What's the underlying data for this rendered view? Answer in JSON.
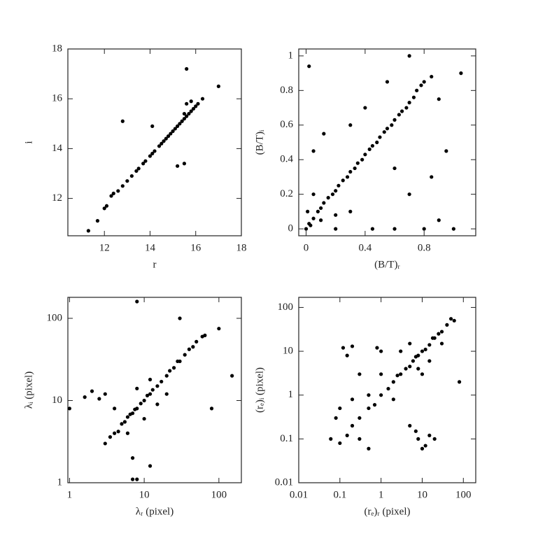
{
  "chart_data": [
    {
      "type": "scatter",
      "xlabel": "r",
      "ylabel": "i",
      "color": "#000000",
      "xlim": [
        10.4,
        18
      ],
      "ylim": [
        10.5,
        18
      ],
      "xticks": [
        12,
        14,
        16,
        18
      ],
      "yticks": [
        12,
        14,
        16,
        18
      ],
      "xlog": false,
      "ylog": false,
      "x": [
        11.3,
        11.7,
        12.1,
        12.4,
        12.6,
        12.8,
        13.0,
        13.2,
        13.4,
        13.5,
        13.7,
        13.8,
        14.0,
        14.1,
        14.2,
        14.4,
        14.5,
        14.6,
        14.7,
        14.8,
        14.9,
        15.0,
        15.1,
        15.2,
        15.3,
        15.4,
        15.5,
        15.5,
        15.6,
        15.7,
        15.8,
        15.9,
        16.0,
        16.1,
        15.6,
        15.8,
        12.8,
        14.1,
        15.2,
        15.5,
        16.3,
        17.0,
        15.6,
        12.0,
        12.3
      ],
      "y": [
        10.7,
        11.1,
        11.7,
        12.2,
        12.3,
        12.5,
        12.7,
        12.9,
        13.1,
        13.2,
        13.4,
        13.5,
        13.7,
        13.8,
        13.9,
        14.1,
        14.2,
        14.3,
        14.4,
        14.5,
        14.6,
        14.7,
        14.8,
        14.9,
        15.0,
        15.1,
        15.2,
        15.4,
        15.3,
        15.4,
        15.5,
        15.6,
        15.7,
        15.8,
        15.8,
        15.9,
        15.1,
        14.9,
        13.3,
        13.4,
        16.0,
        16.5,
        17.2,
        11.6,
        12.1
      ]
    },
    {
      "type": "scatter",
      "xlabel": "(B/T)ᵣ",
      "ylabel": "(B/T)ᵢ",
      "color": "#000000",
      "xlim": [
        -0.05,
        1.15
      ],
      "ylim": [
        -0.04,
        1.04
      ],
      "xticks": [
        0,
        0.4,
        0.8
      ],
      "yticks": [
        0,
        0.2,
        0.4,
        0.6,
        0.8,
        1
      ],
      "xlog": false,
      "ylog": false,
      "x": [
        0,
        0.02,
        0.05,
        0.08,
        0.1,
        0.12,
        0.15,
        0.18,
        0.2,
        0.22,
        0.25,
        0.28,
        0.3,
        0.33,
        0.35,
        0.38,
        0.4,
        0.43,
        0.45,
        0.48,
        0.5,
        0.53,
        0.55,
        0.58,
        0.6,
        0.63,
        0.65,
        0.68,
        0.7,
        0.73,
        0.75,
        0.78,
        0.8,
        0.85,
        0.02,
        0.05,
        0.1,
        0.2,
        0.05,
        0.12,
        0.3,
        0.45,
        0.6,
        0.8,
        0.9,
        1.0,
        0.85,
        0.95,
        0.9,
        1.05,
        0.7,
        0.55,
        0.3,
        0.4,
        0.6,
        0.7,
        0.2,
        0.01,
        0.03
      ],
      "y": [
        0,
        0.03,
        0.06,
        0.1,
        0.12,
        0.15,
        0.18,
        0.2,
        0.22,
        0.25,
        0.28,
        0.3,
        0.33,
        0.35,
        0.38,
        0.4,
        0.43,
        0.46,
        0.48,
        0.5,
        0.53,
        0.56,
        0.58,
        0.6,
        0.63,
        0.66,
        0.68,
        0.7,
        0.73,
        0.76,
        0.8,
        0.83,
        0.85,
        0.88,
        0.94,
        0.2,
        0.05,
        0.08,
        0.45,
        0.55,
        0.1,
        0,
        0,
        0,
        0.05,
        0,
        0.3,
        0.45,
        0.75,
        0.9,
        1.0,
        0.85,
        0.6,
        0.7,
        0.35,
        0.2,
        0,
        0.1,
        0.02
      ]
    },
    {
      "type": "scatter",
      "xlabel": "λᵣ (pixel)",
      "ylabel": "λᵢ (pixel)",
      "color": "#000000",
      "xlim": [
        0.95,
        200
      ],
      "ylim": [
        1,
        180
      ],
      "xticks": [
        1,
        10,
        100
      ],
      "yticks": [
        1,
        10,
        100
      ],
      "xlog": true,
      "ylog": true,
      "x": [
        3,
        3.5,
        4,
        4.5,
        5,
        5.5,
        6,
        6.5,
        7,
        7.5,
        8,
        9,
        10,
        11,
        12,
        13,
        15,
        17,
        20,
        22,
        25,
        28,
        30,
        35,
        40,
        45,
        50,
        60,
        65,
        4,
        6,
        10,
        15,
        8,
        12,
        20,
        1,
        1.6,
        2,
        3,
        2.5,
        80,
        100,
        150,
        30,
        8,
        7,
        12,
        7,
        8
      ],
      "y": [
        3,
        3.6,
        4,
        4.2,
        5.2,
        5.5,
        6.3,
        6.8,
        7,
        7.8,
        8,
        9.2,
        10,
        11.5,
        12,
        13.5,
        15,
        17,
        20,
        23,
        25,
        30,
        30,
        36,
        42,
        45,
        52,
        60,
        62,
        8,
        4,
        6,
        9,
        14,
        18,
        12,
        8,
        11,
        13,
        12,
        10.5,
        8,
        75,
        20,
        100,
        160,
        2,
        1.6,
        1.1,
        1.1
      ]
    },
    {
      "type": "scatter",
      "xlabel": "(rₑ)ᵣ (pixel)",
      "ylabel": "(rₑ)ᵢ (pixel)",
      "color": "#000000",
      "xlim": [
        0.01,
        200
      ],
      "ylim": [
        0.01,
        170
      ],
      "xticks": [
        0.01,
        0.1,
        1,
        10,
        100
      ],
      "yticks": [
        0.01,
        0.1,
        1,
        10,
        100
      ],
      "xlog": true,
      "ylog": true,
      "x": [
        0.3,
        0.5,
        0.7,
        1,
        1.5,
        2,
        2.5,
        3,
        4,
        5,
        6,
        7,
        8,
        10,
        12,
        15,
        18,
        20,
        25,
        30,
        40,
        50,
        3,
        5,
        8,
        10,
        15,
        2,
        1,
        0.2,
        0.1,
        0.08,
        0.06,
        0.1,
        0.15,
        0.2,
        0.3,
        0.5,
        0.12,
        0.15,
        0.2,
        0.3,
        0.5,
        1,
        5,
        8,
        12,
        15,
        10,
        7,
        20,
        80,
        60,
        30,
        0.8
      ],
      "y": [
        0.3,
        0.5,
        0.6,
        1,
        1.4,
        2,
        2.8,
        3,
        4,
        4.5,
        6,
        7.5,
        8,
        10,
        11,
        14,
        20,
        20,
        25,
        28,
        40,
        55,
        10,
        15,
        4,
        3,
        6,
        0.8,
        3,
        0.8,
        0.5,
        0.3,
        0.1,
        0.08,
        0.12,
        0.2,
        0.1,
        0.06,
        12,
        8,
        13,
        3,
        1,
        10,
        0.2,
        0.1,
        0.07,
        0.12,
        0.06,
        0.15,
        0.1,
        2,
        50,
        15,
        12
      ]
    }
  ]
}
